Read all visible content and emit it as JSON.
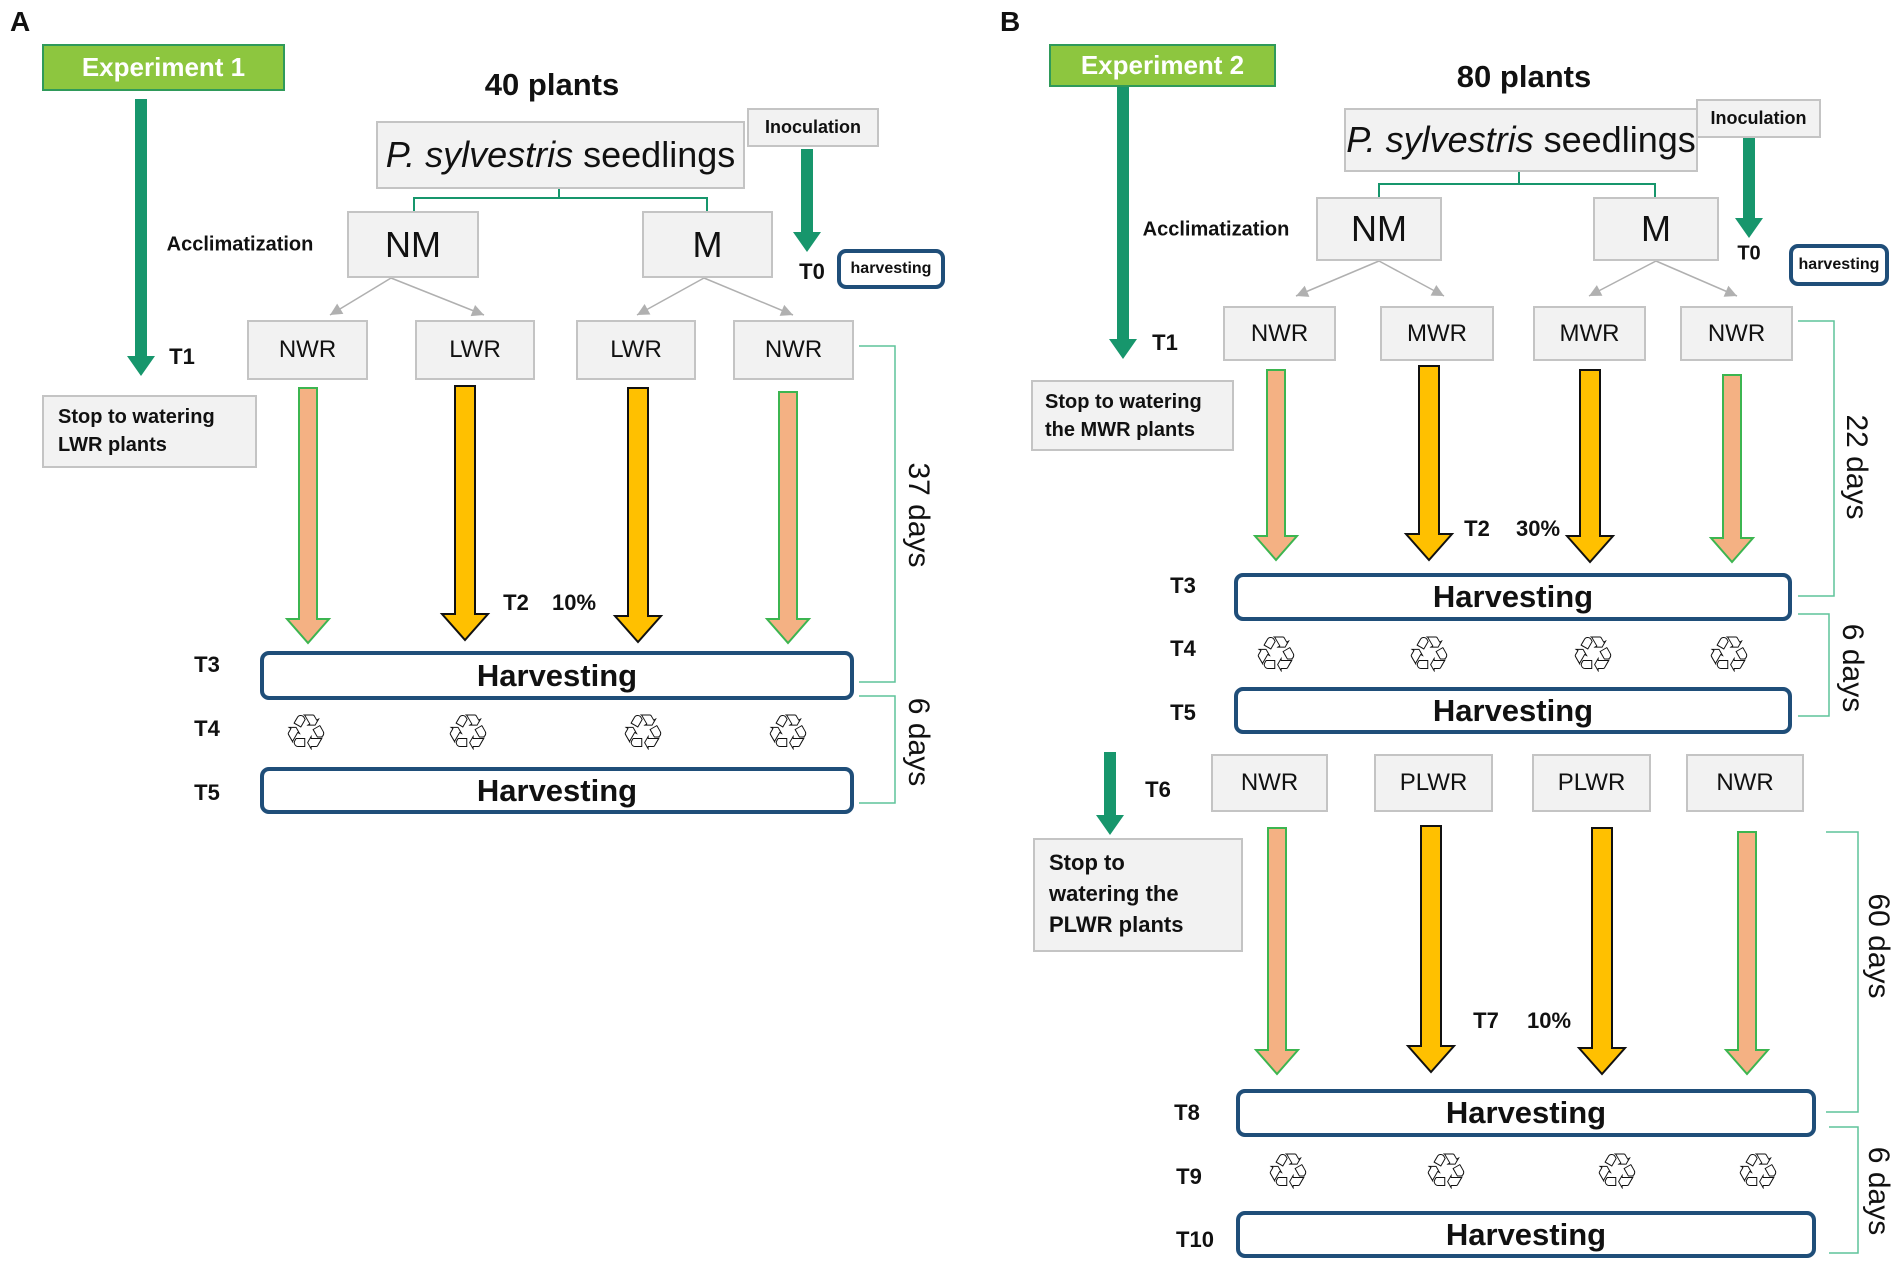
{
  "colors": {
    "experiment_fill": "#8dc63f",
    "timeline_arrow": "#17966c",
    "watered_arrow": "#f4b183",
    "watered_arrow_border": "#3cb550",
    "stressed_arrow": "#ffc000",
    "harvest_border": "#1f4e79",
    "bracket": "#5fc39a",
    "box_fill": "#f2f2f2"
  },
  "icons": {
    "recycle": "recycle-icon"
  },
  "panelA": {
    "letter": "A",
    "experiment": "Experiment 1",
    "plants": "40 plants",
    "species": "P. sylvestris",
    "seedlings": " seedlings",
    "inoculation": "Inoculation",
    "t0": "T0",
    "t0_harvest": "harvesting",
    "acclimatization": "Acclimatization",
    "nm": "NM",
    "m": "M",
    "t1": "T1",
    "treatments": [
      "NWR",
      "LWR",
      "LWR",
      "NWR"
    ],
    "stop_note": [
      "Stop to watering",
      "LWR plants"
    ],
    "t2": "T2",
    "t2_percent": "10%",
    "t3": "T3",
    "t4": "T4",
    "t5": "T5",
    "harvest": "Harvesting",
    "period1": "37 days",
    "period2": "6 days"
  },
  "panelB": {
    "letter": "B",
    "experiment": "Experiment 2",
    "plants": "80 plants",
    "species": "P. sylvestris",
    "seedlings": " seedlings",
    "inoculation": "Inoculation",
    "t0": "T0",
    "t0_harvest": "harvesting",
    "acclimatization": "Acclimatization",
    "nm": "NM",
    "m": "M",
    "t1": "T1",
    "treatments1": [
      "NWR",
      "MWR",
      "MWR",
      "NWR"
    ],
    "stop_note1": [
      "Stop to watering",
      "the MWR plants"
    ],
    "t2": "T2",
    "t2_percent": "30%",
    "t3": "T3",
    "t4": "T4",
    "t5": "T5",
    "t6": "T6",
    "treatments2": [
      "NWR",
      "PLWR",
      "PLWR",
      "NWR"
    ],
    "stop_note2": [
      "Stop to",
      "watering the",
      "PLWR plants"
    ],
    "t7": "T7",
    "t7_percent": "10%",
    "t8": "T8",
    "t9": "T9",
    "t10": "T10",
    "harvest": "Harvesting",
    "period1": "22 days",
    "period2": "6 days",
    "period3": "60 days",
    "period4": "6 days"
  }
}
